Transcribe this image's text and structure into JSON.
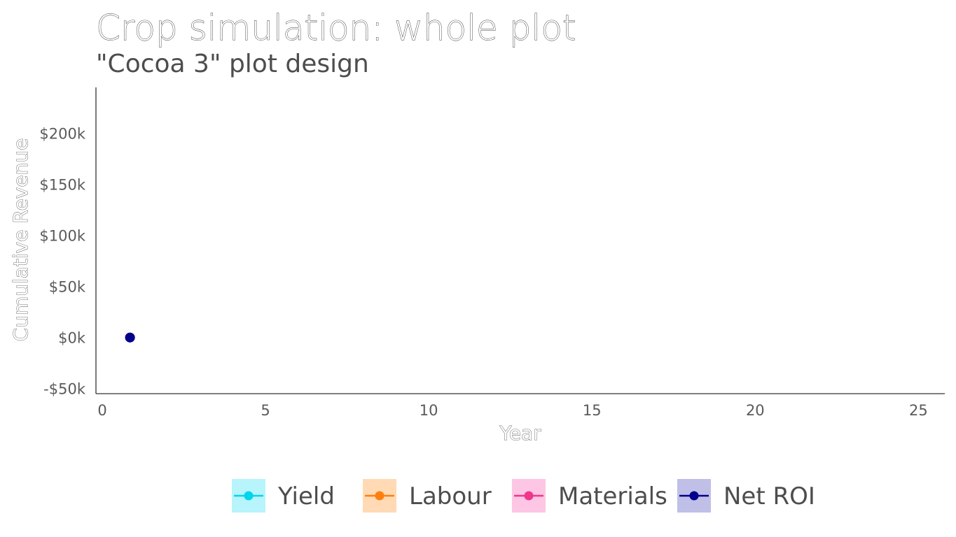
{
  "chart_data": {
    "type": "line",
    "title": "Crop simulation: whole plot",
    "subtitle": "\"Cocoa 3\" plot design",
    "xlabel": "Year",
    "ylabel": "Cumulative Revenue",
    "xlim": [
      0,
      26
    ],
    "ylim": [
      -55000,
      245000
    ],
    "x_ticks": [
      0,
      5,
      10,
      15,
      20,
      25
    ],
    "x_tick_labels": [
      "0",
      "5",
      "10",
      "15",
      "20",
      "25"
    ],
    "y_ticks": [
      -50000,
      0,
      50000,
      100000,
      150000,
      200000
    ],
    "y_tick_labels": [
      "-$50k",
      "$0k",
      "$50k",
      "$100k",
      "$150k",
      "$200k"
    ],
    "grid": false,
    "legend_position": "bottom",
    "series": [
      {
        "name": "Yield",
        "color": "#00d5ef",
        "fill": "#b8f4fb",
        "x": [
          1
        ],
        "y": [
          0
        ]
      },
      {
        "name": "Labour",
        "color": "#ff7f0e",
        "fill": "#ffdab5",
        "x": [
          1
        ],
        "y": [
          0
        ]
      },
      {
        "name": "Materials",
        "color": "#f0368c",
        "fill": "#fdc6e4",
        "x": [
          1
        ],
        "y": [
          0
        ]
      },
      {
        "name": "Net ROI",
        "color": "#00008b",
        "fill": "#bfbfe8",
        "x": [
          1
        ],
        "y": [
          0
        ]
      }
    ]
  }
}
